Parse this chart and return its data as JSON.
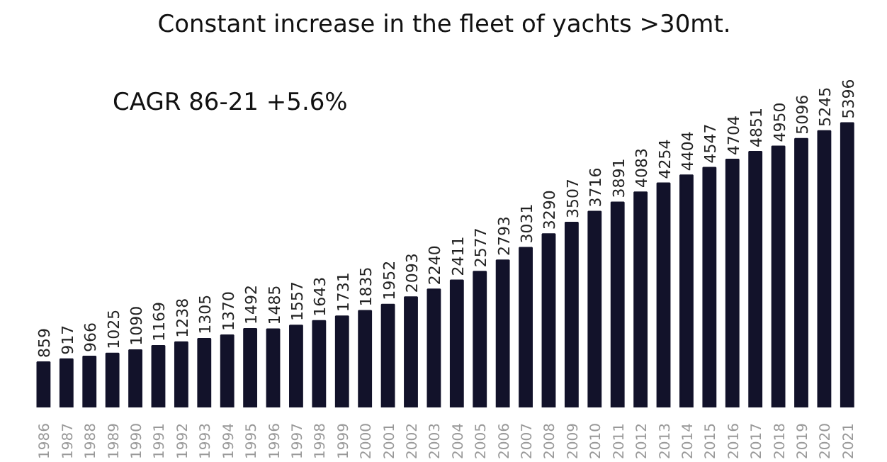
{
  "chart_data": {
    "type": "bar",
    "title": "Constant increase in the fleet of yachts >30mt.",
    "categories": [
      "1986",
      "1987",
      "1988",
      "1989",
      "1990",
      "1991",
      "1992",
      "1993",
      "1994",
      "1995",
      "1996",
      "1997",
      "1998",
      "1999",
      "2000",
      "2001",
      "2002",
      "2003",
      "2004",
      "2005",
      "2006",
      "2007",
      "2008",
      "2009",
      "2010",
      "2011",
      "2012",
      "2013",
      "2014",
      "2015",
      "2016",
      "2017",
      "2018",
      "2019",
      "2020",
      "2021"
    ],
    "values": [
      859,
      917,
      966,
      1025,
      1090,
      1169,
      1238,
      1305,
      1370,
      1492,
      1485,
      1557,
      1643,
      1731,
      1835,
      1952,
      2093,
      2240,
      2411,
      2577,
      2793,
      3031,
      3290,
      3507,
      3716,
      3891,
      4083,
      4254,
      4404,
      4547,
      4704,
      4851,
      4950,
      5096,
      5245,
      5396
    ],
    "color": "#12122a",
    "data_labels": true,
    "annotations": [
      "CAGR 86-21 +5.6%"
    ]
  }
}
